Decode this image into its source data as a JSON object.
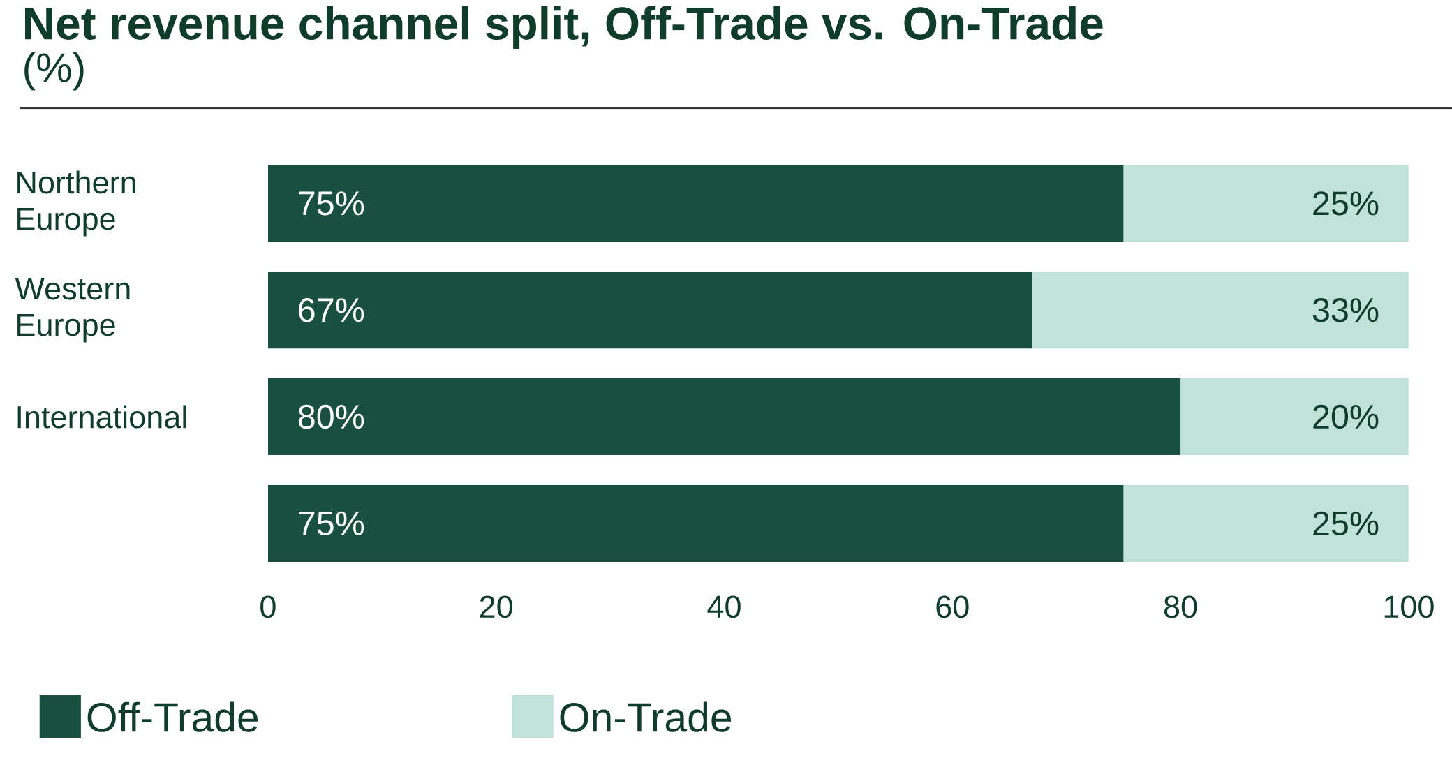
{
  "chart_data": {
    "type": "bar",
    "title": "Net revenue channel split, Off-Trade vs. On-Trade",
    "subtitle": "(%)",
    "categories": [
      "Northern Europe",
      "Western Europe",
      "International",
      null
    ],
    "orientation": "horizontal",
    "stacked": true,
    "series": [
      {
        "name": "Off-Trade",
        "color": "#1a5040",
        "values": [
          75,
          67,
          80,
          75
        ],
        "value_labels": [
          "75%",
          "67%",
          "80%",
          "75%"
        ]
      },
      {
        "name": "On-Trade",
        "color": "#c0e2d8",
        "values": [
          25,
          33,
          20,
          25
        ],
        "value_labels": [
          "25%",
          "33%",
          "20%",
          "25%"
        ]
      }
    ],
    "xlim": [
      0,
      100
    ],
    "xticks": [
      0,
      20,
      40,
      60,
      80,
      100
    ],
    "legend": "bottom left"
  }
}
